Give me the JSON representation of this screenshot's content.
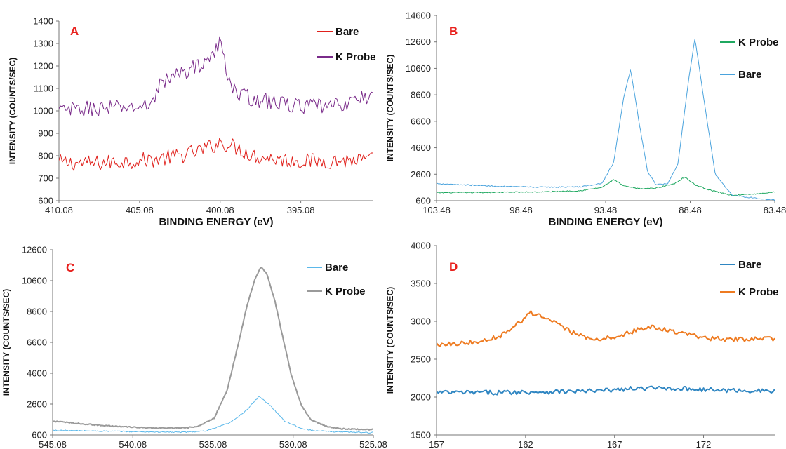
{
  "chart_data": [
    {
      "type": "line",
      "panel_label": "A",
      "xlabel": "BINDING ENERGY (eV)",
      "ylabel": "INTENSITY (COUNTS/SEC)",
      "x_reversed": true,
      "xlim": [
        410.08,
        390.58
      ],
      "ylim": [
        600,
        1400
      ],
      "xticks": [
        "410.08",
        "405.08",
        "400.08",
        "395.08"
      ],
      "xtick_values": [
        410.08,
        405.08,
        400.08,
        395.08
      ],
      "yticks": [
        600,
        700,
        800,
        900,
        1000,
        1100,
        1200,
        1300,
        1400
      ],
      "legend": "top-right",
      "noisy": true,
      "series": [
        {
          "name": "Bare",
          "color": "#e0201b",
          "stroke_width": 1,
          "x": [
            410.08,
            408,
            406,
            404,
            402.5,
            401,
            400.08,
            399.2,
            398,
            396,
            394,
            392,
            390.58
          ],
          "y": [
            770,
            765,
            775,
            785,
            800,
            830,
            860,
            840,
            800,
            780,
            775,
            780,
            780
          ]
        },
        {
          "name": "K Probe",
          "color": "#7a2b8a",
          "stroke_width": 1,
          "x": [
            410.08,
            408,
            406,
            404.5,
            403.8,
            402.5,
            401.5,
            400.6,
            400.08,
            399.5,
            399,
            397,
            395,
            393,
            391.5,
            390.58
          ],
          "y": [
            1000,
            1010,
            1015,
            1020,
            1120,
            1170,
            1200,
            1240,
            1300,
            1140,
            1070,
            1040,
            1020,
            1020,
            1050,
            1070
          ]
        }
      ]
    },
    {
      "type": "line",
      "panel_label": "B",
      "xlabel": "BINDING ENERGY (eV)",
      "ylabel": "INTENSITY (COUNTS/SEC)",
      "x_reversed": true,
      "xlim": [
        103.48,
        83.48
      ],
      "ylim": [
        600,
        14600
      ],
      "xticks": [
        "103.48",
        "98.48",
        "93.48",
        "88.48",
        "83.48"
      ],
      "xtick_values": [
        103.48,
        98.48,
        93.48,
        88.48,
        83.48
      ],
      "yticks": [
        600,
        2600,
        4600,
        6600,
        8600,
        10600,
        12600,
        14600
      ],
      "legend": "top-right",
      "noisy": false,
      "series": [
        {
          "name": "K Probe",
          "color": "#1fa860",
          "stroke_width": 1,
          "x": [
            103.48,
            101,
            99,
            97,
            95,
            93.7,
            93.0,
            92.4,
            91.5,
            90.5,
            89.4,
            88.8,
            88.2,
            87.3,
            86,
            84,
            83.48
          ],
          "y": [
            1200,
            1220,
            1240,
            1270,
            1350,
            1600,
            2200,
            1700,
            1500,
            1550,
            1900,
            2400,
            1800,
            1400,
            1000,
            1150,
            1250
          ]
        },
        {
          "name": "Bare",
          "color": "#4aa3dd",
          "stroke_width": 1,
          "x": [
            103.48,
            101,
            99,
            97,
            95,
            93.7,
            93.0,
            92.4,
            92.0,
            91.5,
            91.0,
            90.5,
            89.8,
            89.2,
            88.6,
            88.2,
            87.7,
            87.0,
            86,
            84,
            83.48
          ],
          "y": [
            1900,
            1750,
            1650,
            1620,
            1650,
            1900,
            3500,
            8500,
            10500,
            6500,
            2800,
            1800,
            1900,
            3400,
            9500,
            12900,
            8500,
            2600,
            1000,
            700,
            650
          ]
        }
      ]
    },
    {
      "type": "line",
      "panel_label": "C",
      "xlabel": "BINDING ENERGY (eV)",
      "ylabel": "INTENSITY (COUNTS/SEC)",
      "x_reversed": true,
      "xlim": [
        545.08,
        525.08
      ],
      "ylim": [
        600,
        12600
      ],
      "xticks": [
        "545.08",
        "540.08",
        "535.08",
        "530.08",
        "525.08"
      ],
      "xtick_values": [
        545.08,
        540.08,
        535.08,
        530.08,
        525.08
      ],
      "yticks": [
        600,
        2600,
        4600,
        6600,
        8600,
        10600,
        12600
      ],
      "legend": "top-right",
      "noisy": false,
      "series": [
        {
          "name": "Bare",
          "color": "#5bb8ea",
          "stroke_width": 1,
          "x": [
            545.08,
            542,
            539,
            537,
            535.5,
            534,
            533,
            532.2,
            531.5,
            530.6,
            529.5,
            528.5,
            527,
            525.08
          ],
          "y": [
            900,
            850,
            800,
            780,
            850,
            1400,
            2200,
            3100,
            2500,
            1500,
            1000,
            850,
            800,
            750
          ]
        },
        {
          "name": "K Probe",
          "color": "#9a9a9a",
          "stroke_width": 2,
          "x": [
            545.08,
            543,
            541,
            539,
            537,
            536,
            535,
            534.2,
            533.5,
            533,
            532.5,
            532.1,
            531.7,
            531.2,
            530.7,
            530.2,
            529.6,
            529,
            528,
            527,
            525.08
          ],
          "y": [
            1500,
            1300,
            1150,
            1050,
            1050,
            1150,
            1700,
            3500,
            6500,
            8800,
            10600,
            11500,
            11000,
            9200,
            6800,
            4500,
            2600,
            1600,
            1150,
            1000,
            950
          ]
        }
      ]
    },
    {
      "type": "line",
      "panel_label": "D",
      "xlabel": "BINDING ENERGY (eV)",
      "ylabel": "INTENSITY (COUNTS/SEC)",
      "x_reversed": false,
      "xlim": [
        157,
        176
      ],
      "ylim": [
        1500,
        4000
      ],
      "xticks": [
        "157",
        "162",
        "167",
        "172"
      ],
      "xtick_values": [
        157,
        162,
        167,
        172
      ],
      "yticks": [
        1500,
        2000,
        2500,
        3000,
        3500,
        4000
      ],
      "legend": "top-right",
      "noisy": true,
      "series": [
        {
          "name": "Bare",
          "color": "#2f86c2",
          "stroke_width": 2,
          "x": [
            157,
            160,
            163,
            166,
            168,
            170,
            173,
            176
          ],
          "y": [
            2060,
            2060,
            2070,
            2080,
            2110,
            2120,
            2090,
            2080
          ]
        },
        {
          "name": "K Probe",
          "color": "#ee7b21",
          "stroke_width": 2,
          "x": [
            157,
            159,
            160.5,
            161.5,
            162.3,
            163.2,
            164.5,
            165.5,
            167,
            168.2,
            169.2,
            170.5,
            172,
            174,
            176
          ],
          "y": [
            2700,
            2720,
            2800,
            2950,
            3120,
            3030,
            2870,
            2770,
            2780,
            2880,
            2930,
            2850,
            2780,
            2760,
            2770
          ]
        }
      ]
    }
  ]
}
